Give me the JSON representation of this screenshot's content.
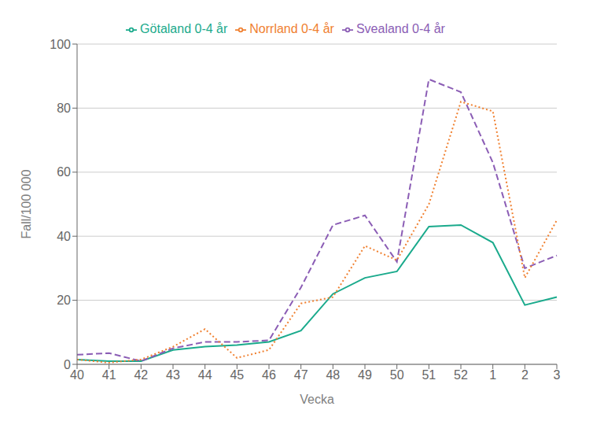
{
  "chart_data": {
    "type": "line",
    "xlabel": "Vecka",
    "ylabel": "Fall/100 000",
    "categories": [
      "40",
      "41",
      "42",
      "43",
      "44",
      "45",
      "46",
      "47",
      "48",
      "49",
      "50",
      "51",
      "52",
      "1",
      "2",
      "3"
    ],
    "series": [
      {
        "name": "Götaland 0-4 år",
        "color": "#1aaa8c",
        "line_style": "solid",
        "values": [
          1.5,
          1.0,
          1.0,
          4.5,
          5.5,
          6.0,
          7.0,
          10.5,
          22.0,
          27.0,
          29.0,
          43.0,
          43.5,
          38.0,
          18.5,
          21.0
        ]
      },
      {
        "name": "Svealand 0-4 år",
        "color": "#8b5db5",
        "line_style": "dashed",
        "values": [
          3.0,
          3.5,
          1.0,
          5.0,
          7.0,
          7.0,
          7.5,
          24.0,
          43.5,
          46.5,
          32.0,
          89.0,
          85.0,
          63.0,
          30.0,
          34.0
        ]
      },
      {
        "name": "Norrland 0-4 år",
        "color": "#f08030",
        "line_style": "dotted",
        "values": [
          1.5,
          0.5,
          1.5,
          5.5,
          11.0,
          2.0,
          4.5,
          19.0,
          21.0,
          37.0,
          32.5,
          50.0,
          82.0,
          79.0,
          27.0,
          45.0
        ]
      }
    ],
    "ylim": [
      0,
      100
    ],
    "yticks": [
      0,
      20,
      40,
      60,
      80,
      100
    ],
    "grid": true,
    "legend": "top"
  }
}
